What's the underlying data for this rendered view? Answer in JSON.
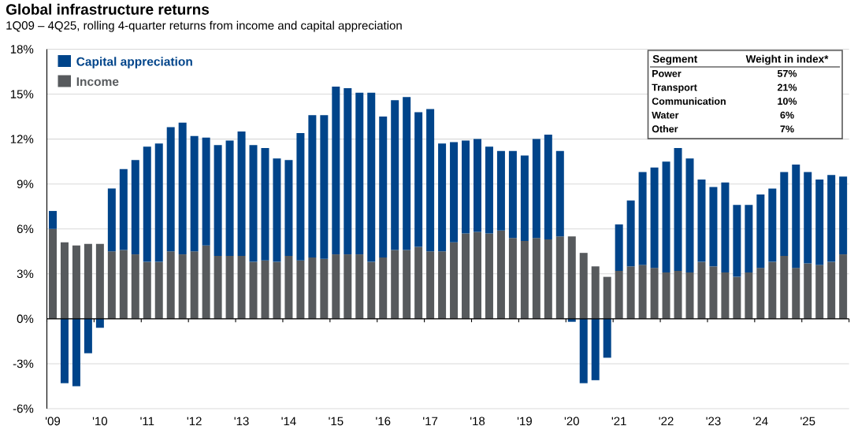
{
  "chart_data": {
    "type": "bar",
    "title": "Global infrastructure returns",
    "subtitle": "1Q09 – 4Q25, rolling 4-quarter returns from income and capital appreciation",
    "categories": [
      "'09",
      null,
      null,
      null,
      "'10",
      null,
      null,
      null,
      "'11",
      null,
      null,
      null,
      "'12",
      null,
      null,
      null,
      "'13",
      null,
      null,
      null,
      "'14",
      null,
      null,
      null,
      "'15",
      null,
      null,
      null,
      "'16",
      null,
      null,
      null,
      "'17",
      null,
      null,
      null,
      "'18",
      null,
      null,
      null,
      "'19",
      null,
      null,
      null,
      "'20",
      null,
      null,
      null,
      "'21",
      null,
      null,
      null,
      "'22",
      null,
      null,
      null,
      "'23",
      null,
      null,
      null,
      "'24",
      null,
      null,
      null,
      "'25",
      null,
      null,
      null
    ],
    "series": [
      {
        "name": "Income",
        "color": "#575a5d",
        "values": [
          6.0,
          5.1,
          4.9,
          5.0,
          5.0,
          4.5,
          4.6,
          4.3,
          3.8,
          3.8,
          4.5,
          4.3,
          4.5,
          4.9,
          4.2,
          4.2,
          4.2,
          3.8,
          3.9,
          3.8,
          4.2,
          3.9,
          4.1,
          4.0,
          4.3,
          4.3,
          4.3,
          3.8,
          4.1,
          4.6,
          4.6,
          4.8,
          4.5,
          4.5,
          5.1,
          5.7,
          5.8,
          5.7,
          5.9,
          5.4,
          5.2,
          5.4,
          5.3,
          5.5,
          5.5,
          4.4,
          3.5,
          2.8,
          3.2,
          3.5,
          3.6,
          3.4,
          3.1,
          3.2,
          3.1,
          3.8,
          3.5,
          3.1,
          2.8,
          3.1,
          3.4,
          3.8,
          4.2,
          3.4,
          3.7,
          3.6,
          3.8,
          4.3
        ]
      },
      {
        "name": "Capital appreciation",
        "color": "#00448a",
        "values": [
          1.2,
          -4.3,
          -4.5,
          -2.3,
          -0.6,
          4.2,
          5.4,
          6.3,
          7.7,
          7.9,
          8.3,
          8.8,
          7.7,
          7.2,
          7.4,
          7.7,
          8.3,
          7.8,
          7.5,
          6.9,
          6.4,
          8.5,
          9.5,
          9.6,
          11.2,
          11.1,
          10.8,
          11.3,
          9.4,
          10.0,
          10.2,
          9.0,
          9.5,
          7.2,
          6.7,
          6.2,
          6.2,
          5.8,
          5.3,
          5.8,
          5.7,
          6.6,
          7.0,
          5.7,
          -0.2,
          -4.3,
          -4.1,
          -2.6,
          3.1,
          4.4,
          6.2,
          6.7,
          7.4,
          8.2,
          7.6,
          5.5,
          5.3,
          6.0,
          4.8,
          4.5,
          4.9,
          4.9,
          5.6,
          6.9,
          6.1,
          5.7,
          5.8,
          5.2
        ]
      }
    ],
    "stacked": true,
    "ylim": [
      -6,
      18
    ],
    "yticks": [
      {
        "value": -6,
        "label": "-6%"
      },
      {
        "value": -3,
        "label": "-3%"
      },
      {
        "value": 0,
        "label": "0%"
      },
      {
        "value": 3,
        "label": "3%"
      },
      {
        "value": 6,
        "label": "6%"
      },
      {
        "value": 9,
        "label": "9%"
      },
      {
        "value": 12,
        "label": "12%"
      },
      {
        "value": 15,
        "label": "15%"
      },
      {
        "value": 18,
        "label": "18%"
      }
    ],
    "grid": "y",
    "legend": "top left",
    "annotations": [
      "Segment",
      "Weight in index*",
      "Power",
      "57%",
      "Transport",
      "21%",
      "Communication",
      "10%",
      "Water",
      "6%",
      "Other",
      "7%"
    ]
  }
}
